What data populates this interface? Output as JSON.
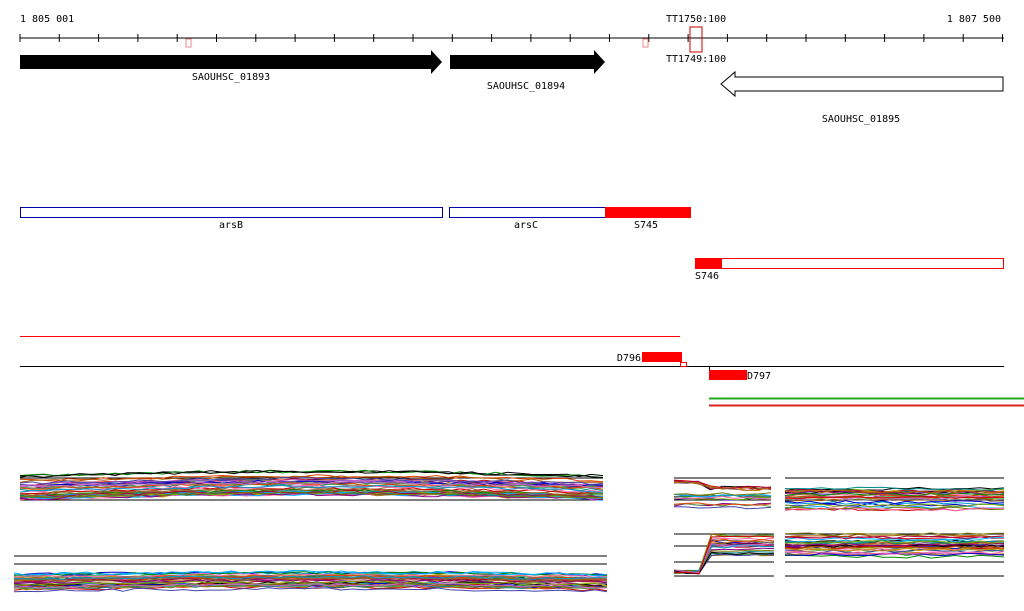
{
  "ruler": {
    "start_label": "1 805 001",
    "end_label": "1 807 500",
    "terminator_top": "TT1750:100",
    "terminator_bottom": "TT1749:100"
  },
  "genes": [
    {
      "name": "SAOUHSC_01893",
      "strand": "+"
    },
    {
      "name": "SAOUHSC_01894",
      "strand": "+"
    },
    {
      "name": "SAOUHSC_01895",
      "strand": "-"
    }
  ],
  "annotations": [
    {
      "name": "arsB",
      "color": "#0000aa"
    },
    {
      "name": "arsC",
      "color": "#0000aa"
    },
    {
      "name": "S745",
      "color": "#ff0000"
    },
    {
      "name": "S746",
      "color": "#ff0000"
    }
  ],
  "features": [
    {
      "name": "D796",
      "color": "#ff0000"
    },
    {
      "name": "D797",
      "color": "#ff0000"
    }
  ],
  "colors": {
    "gene_fill": "#000000",
    "segment": "#ff0000",
    "annotation_outline": "#0000aa",
    "green_line": "#22aa22",
    "red_line": "#dd2222"
  },
  "expression_panels": [
    {
      "name": "upper-left-track"
    },
    {
      "name": "upper-middle-track"
    },
    {
      "name": "upper-right-track"
    },
    {
      "name": "lower-left-track"
    },
    {
      "name": "lower-middle-track"
    },
    {
      "name": "lower-right-track"
    }
  ]
}
